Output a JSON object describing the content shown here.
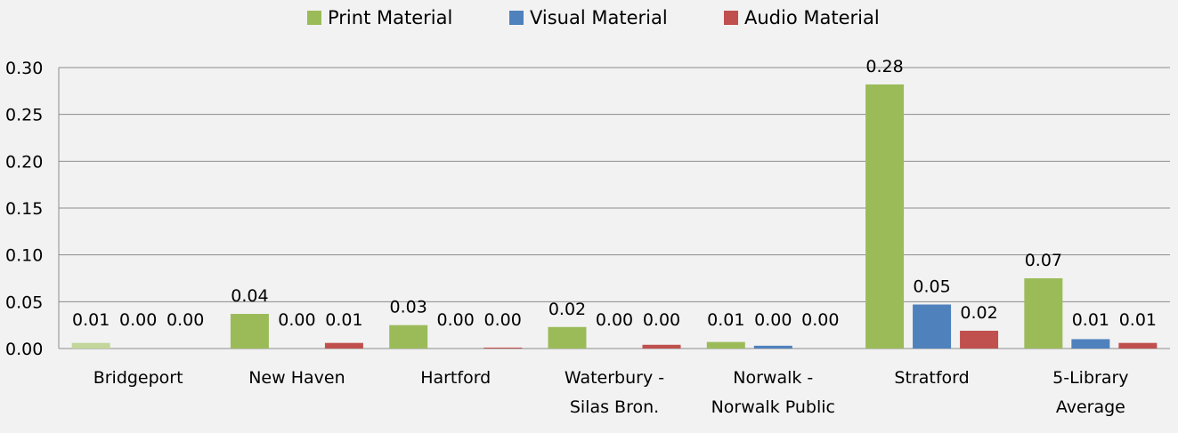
{
  "chart_data": {
    "type": "bar",
    "title": "",
    "xlabel": "",
    "ylabel": "",
    "ylim": [
      0,
      0.3
    ],
    "yticks": [
      "0.00",
      "0.05",
      "0.10",
      "0.15",
      "0.20",
      "0.25",
      "0.30"
    ],
    "grid": true,
    "legend_position": "top-center",
    "categories": [
      [
        "Bridgeport"
      ],
      [
        "New Haven"
      ],
      [
        "Hartford"
      ],
      [
        "Waterbury -",
        "Silas Bron."
      ],
      [
        "Norwalk -",
        "Norwalk Public"
      ],
      [
        "Stratford"
      ],
      [
        "5-Library",
        "Average"
      ]
    ],
    "series": [
      {
        "name": "Print Material",
        "color": "#9bbb59",
        "values": [
          0.006,
          0.037,
          0.025,
          0.023,
          0.007,
          0.282,
          0.075
        ],
        "labels": [
          "0.01",
          "0.04",
          "0.03",
          "0.02",
          "0.01",
          "0.28",
          "0.07"
        ]
      },
      {
        "name": "Visual Material",
        "color": "#4f81bd",
        "values": [
          0.0,
          0.0,
          0.0,
          0.0,
          0.003,
          0.047,
          0.01
        ],
        "labels": [
          "0.00",
          "0.00",
          "0.00",
          "0.00",
          "0.00",
          "0.05",
          "0.01"
        ]
      },
      {
        "name": "Audio Material",
        "color": "#c0504d",
        "values": [
          0.0,
          0.006,
          0.001,
          0.004,
          0.0,
          0.019,
          0.006
        ],
        "labels": [
          "0.00",
          "0.01",
          "0.00",
          "0.00",
          "0.00",
          "0.02",
          "0.01"
        ]
      }
    ]
  }
}
